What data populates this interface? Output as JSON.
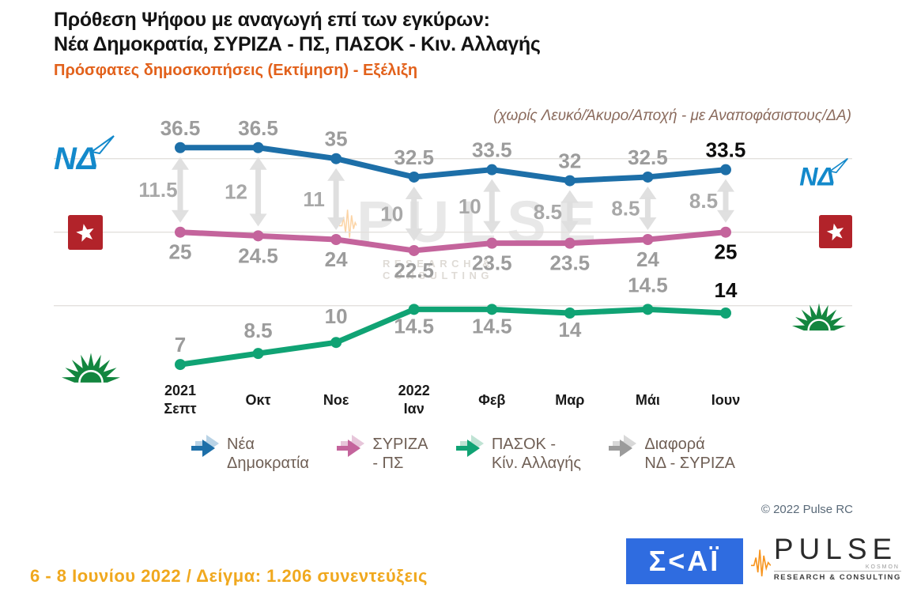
{
  "header": {
    "title_line1": "Πρόθεση Ψήφου με αναγωγή επί των εγκύρων:",
    "title_line2": "Νέα Δημοκρατία, ΣΥΡΙΖΑ - ΠΣ, ΠΑΣΟΚ - Κιν. Αλλαγής",
    "subtitle": "Πρόσφατες δημοσκοπήσεις (Εκτίμηση) - Εξέλιξη",
    "note": "(χωρίς Λευκό/Άκυρο/Αποχή - με Αναποφάσιστους/ΔΑ)"
  },
  "chart_data": {
    "type": "line",
    "categories": [
      "2021|Σεπτ",
      "Οκτ",
      "Νοε",
      "2022|Ιαν",
      "Φεβ",
      "Μαρ",
      "Μάι",
      "Ιουν"
    ],
    "series": [
      {
        "name": "Νέα Δημοκρατία",
        "color": "#1d6fa8",
        "values": [
          36.5,
          36.5,
          35,
          32.5,
          33.5,
          32,
          32.5,
          33.5
        ]
      },
      {
        "name": "ΣΥΡΙΖΑ - ΠΣ",
        "color": "#c4649c",
        "values": [
          25,
          24.5,
          24,
          22.5,
          23.5,
          23.5,
          24,
          25
        ]
      },
      {
        "name": "ΠΑΣΟΚ - Κίν. Αλλαγής",
        "color": "#10a374",
        "values": [
          7,
          8.5,
          10,
          14.5,
          14.5,
          14,
          14.5,
          14
        ]
      }
    ],
    "difference_series": {
      "name": "Διαφορά ΝΔ - ΣΥΡΙΖΑ",
      "color": "#dedede",
      "values": [
        11.5,
        12,
        11,
        10,
        10,
        8.5,
        8.5,
        8.5
      ]
    },
    "ylim": [
      5,
      40
    ],
    "gridline_values": [
      35,
      25,
      15
    ],
    "label_color_gray": "#9c9c9c",
    "label_color_final": "#0d0d0d",
    "legend_position": "bottom",
    "last_point_emphasized": true
  },
  "legend": {
    "items": [
      {
        "label_line1": "Νέα",
        "label_line2": "Δημοκρατία",
        "color": "#1d6fa8",
        "halo": "#b9d3e6"
      },
      {
        "label_line1": "ΣΥΡΙΖΑ",
        "label_line2": "- ΠΣ",
        "color": "#c4649c",
        "halo": "#e7c6da"
      },
      {
        "label_line1": "ΠΑΣΟΚ -",
        "label_line2": "Κίν. Αλλαγής",
        "color": "#10a374",
        "halo": "#bfe3d4"
      },
      {
        "label_line1": "Διαφορά",
        "label_line2": "ΝΔ - ΣΥΡΙΖΑ",
        "color": "#9b9b9b",
        "halo": "#d8d8d8"
      }
    ]
  },
  "watermark": {
    "text": "PULSE",
    "subtext": "RESEARCH & CONSULTING"
  },
  "copyright": "© 2022 Pulse RC",
  "footer": "6 - 8  Ιουνίου  2022  /  Δείγμα:  1.206 συνεντεύξεις",
  "party_logos": {
    "nd": "ΝΔ",
    "syriza": "ΣΥΡΙΖΑ",
    "pasok": "ΠΑΣΟΚ"
  },
  "brand_logos": {
    "skai_text": "Σ<ΑΪ",
    "pulse_name": "PULSE",
    "pulse_sub": "KOSMON",
    "pulse_tagline": "RESEARCH & CONSULTING"
  }
}
